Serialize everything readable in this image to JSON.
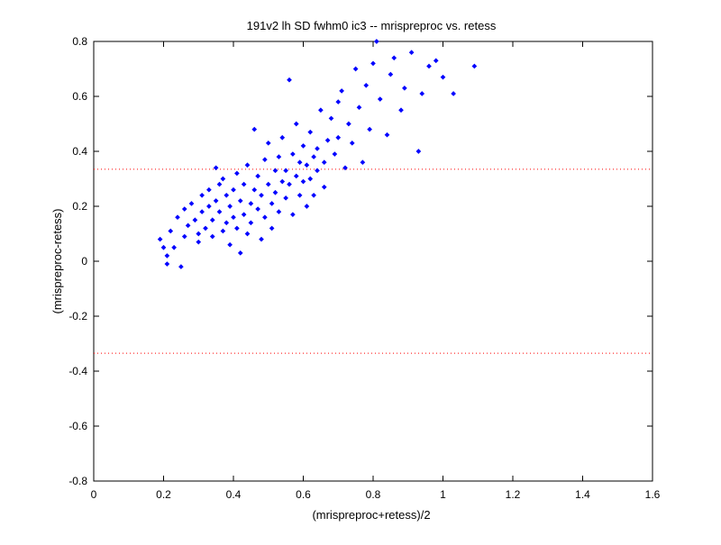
{
  "chart_data": {
    "type": "scatter",
    "title": "191v2 lh SD fwhm0 ic3 -- mrispreproc vs. retess",
    "xlabel": "(mrispreproc+retess)/2",
    "ylabel": "(mrispreproc-retess)",
    "xlim": [
      0,
      1.6
    ],
    "ylim": [
      -0.8,
      0.8
    ],
    "xticks": [
      0,
      0.2,
      0.4,
      0.6,
      0.8,
      1,
      1.2,
      1.4,
      1.6
    ],
    "xtick_labels": [
      "0",
      "0.2",
      "0.4",
      "0.6",
      "0.8",
      "1",
      "1.2",
      "1.4",
      "1.6"
    ],
    "yticks": [
      -0.8,
      -0.6,
      -0.4,
      -0.2,
      0,
      0.2,
      0.4,
      0.6,
      0.8
    ],
    "ytick_labels": [
      "-0.8",
      "-0.6",
      "-0.4",
      "-0.2",
      "0",
      "0.2",
      "0.4",
      "0.6",
      "0.8"
    ],
    "grid": false,
    "series": [
      {
        "marker": "dot",
        "color": "#0000ff",
        "points": [
          [
            0.19,
            0.08
          ],
          [
            0.2,
            0.05
          ],
          [
            0.21,
            0.02
          ],
          [
            0.21,
            -0.01
          ],
          [
            0.22,
            0.11
          ],
          [
            0.23,
            0.05
          ],
          [
            0.24,
            0.16
          ],
          [
            0.25,
            -0.02
          ],
          [
            0.26,
            0.19
          ],
          [
            0.26,
            0.09
          ],
          [
            0.27,
            0.13
          ],
          [
            0.28,
            0.21
          ],
          [
            0.29,
            0.15
          ],
          [
            0.3,
            0.1
          ],
          [
            0.3,
            0.07
          ],
          [
            0.31,
            0.18
          ],
          [
            0.31,
            0.24
          ],
          [
            0.32,
            0.12
          ],
          [
            0.33,
            0.2
          ],
          [
            0.33,
            0.26
          ],
          [
            0.34,
            0.15
          ],
          [
            0.34,
            0.09
          ],
          [
            0.35,
            0.34
          ],
          [
            0.35,
            0.22
          ],
          [
            0.36,
            0.28
          ],
          [
            0.36,
            0.18
          ],
          [
            0.37,
            0.11
          ],
          [
            0.37,
            0.3
          ],
          [
            0.38,
            0.14
          ],
          [
            0.38,
            0.24
          ],
          [
            0.39,
            0.06
          ],
          [
            0.39,
            0.2
          ],
          [
            0.4,
            0.16
          ],
          [
            0.4,
            0.26
          ],
          [
            0.41,
            0.32
          ],
          [
            0.41,
            0.12
          ],
          [
            0.42,
            0.22
          ],
          [
            0.42,
            0.03
          ],
          [
            0.43,
            0.28
          ],
          [
            0.43,
            0.17
          ],
          [
            0.44,
            0.1
          ],
          [
            0.44,
            0.35
          ],
          [
            0.45,
            0.21
          ],
          [
            0.45,
            0.14
          ],
          [
            0.46,
            0.48
          ],
          [
            0.46,
            0.26
          ],
          [
            0.47,
            0.19
          ],
          [
            0.47,
            0.31
          ],
          [
            0.48,
            0.08
          ],
          [
            0.48,
            0.24
          ],
          [
            0.49,
            0.37
          ],
          [
            0.49,
            0.16
          ],
          [
            0.5,
            0.28
          ],
          [
            0.5,
            0.43
          ],
          [
            0.51,
            0.21
          ],
          [
            0.51,
            0.12
          ],
          [
            0.52,
            0.33
          ],
          [
            0.52,
            0.25
          ],
          [
            0.53,
            0.38
          ],
          [
            0.53,
            0.18
          ],
          [
            0.54,
            0.29
          ],
          [
            0.54,
            0.45
          ],
          [
            0.55,
            0.23
          ],
          [
            0.55,
            0.33
          ],
          [
            0.56,
            0.66
          ],
          [
            0.56,
            0.28
          ],
          [
            0.57,
            0.39
          ],
          [
            0.57,
            0.17
          ],
          [
            0.58,
            0.31
          ],
          [
            0.58,
            0.5
          ],
          [
            0.59,
            0.24
          ],
          [
            0.59,
            0.36
          ],
          [
            0.6,
            0.42
          ],
          [
            0.6,
            0.29
          ],
          [
            0.61,
            0.35
          ],
          [
            0.61,
            0.2
          ],
          [
            0.62,
            0.47
          ],
          [
            0.62,
            0.3
          ],
          [
            0.63,
            0.38
          ],
          [
            0.63,
            0.24
          ],
          [
            0.64,
            0.41
          ],
          [
            0.64,
            0.33
          ],
          [
            0.65,
            0.55
          ],
          [
            0.66,
            0.36
          ],
          [
            0.66,
            0.27
          ],
          [
            0.67,
            0.44
          ],
          [
            0.68,
            0.52
          ],
          [
            0.69,
            0.39
          ],
          [
            0.7,
            0.58
          ],
          [
            0.7,
            0.45
          ],
          [
            0.71,
            0.62
          ],
          [
            0.72,
            0.34
          ],
          [
            0.73,
            0.5
          ],
          [
            0.74,
            0.43
          ],
          [
            0.75,
            0.7
          ],
          [
            0.76,
            0.56
          ],
          [
            0.77,
            0.36
          ],
          [
            0.78,
            0.64
          ],
          [
            0.79,
            0.48
          ],
          [
            0.8,
            0.72
          ],
          [
            0.81,
            0.8
          ],
          [
            0.82,
            0.59
          ],
          [
            0.84,
            0.46
          ],
          [
            0.85,
            0.68
          ],
          [
            0.86,
            0.74
          ],
          [
            0.88,
            0.55
          ],
          [
            0.89,
            0.63
          ],
          [
            0.91,
            0.76
          ],
          [
            0.93,
            0.4
          ],
          [
            0.94,
            0.61
          ],
          [
            0.96,
            0.71
          ],
          [
            0.98,
            0.73
          ],
          [
            1.0,
            0.67
          ],
          [
            1.03,
            0.61
          ],
          [
            1.09,
            0.71
          ]
        ]
      }
    ],
    "reference_lines": [
      {
        "axis": "y",
        "value": 0.335,
        "color": "#ff0000",
        "style": "dotted"
      },
      {
        "axis": "y",
        "value": -0.335,
        "color": "#ff0000",
        "style": "dotted"
      }
    ]
  }
}
